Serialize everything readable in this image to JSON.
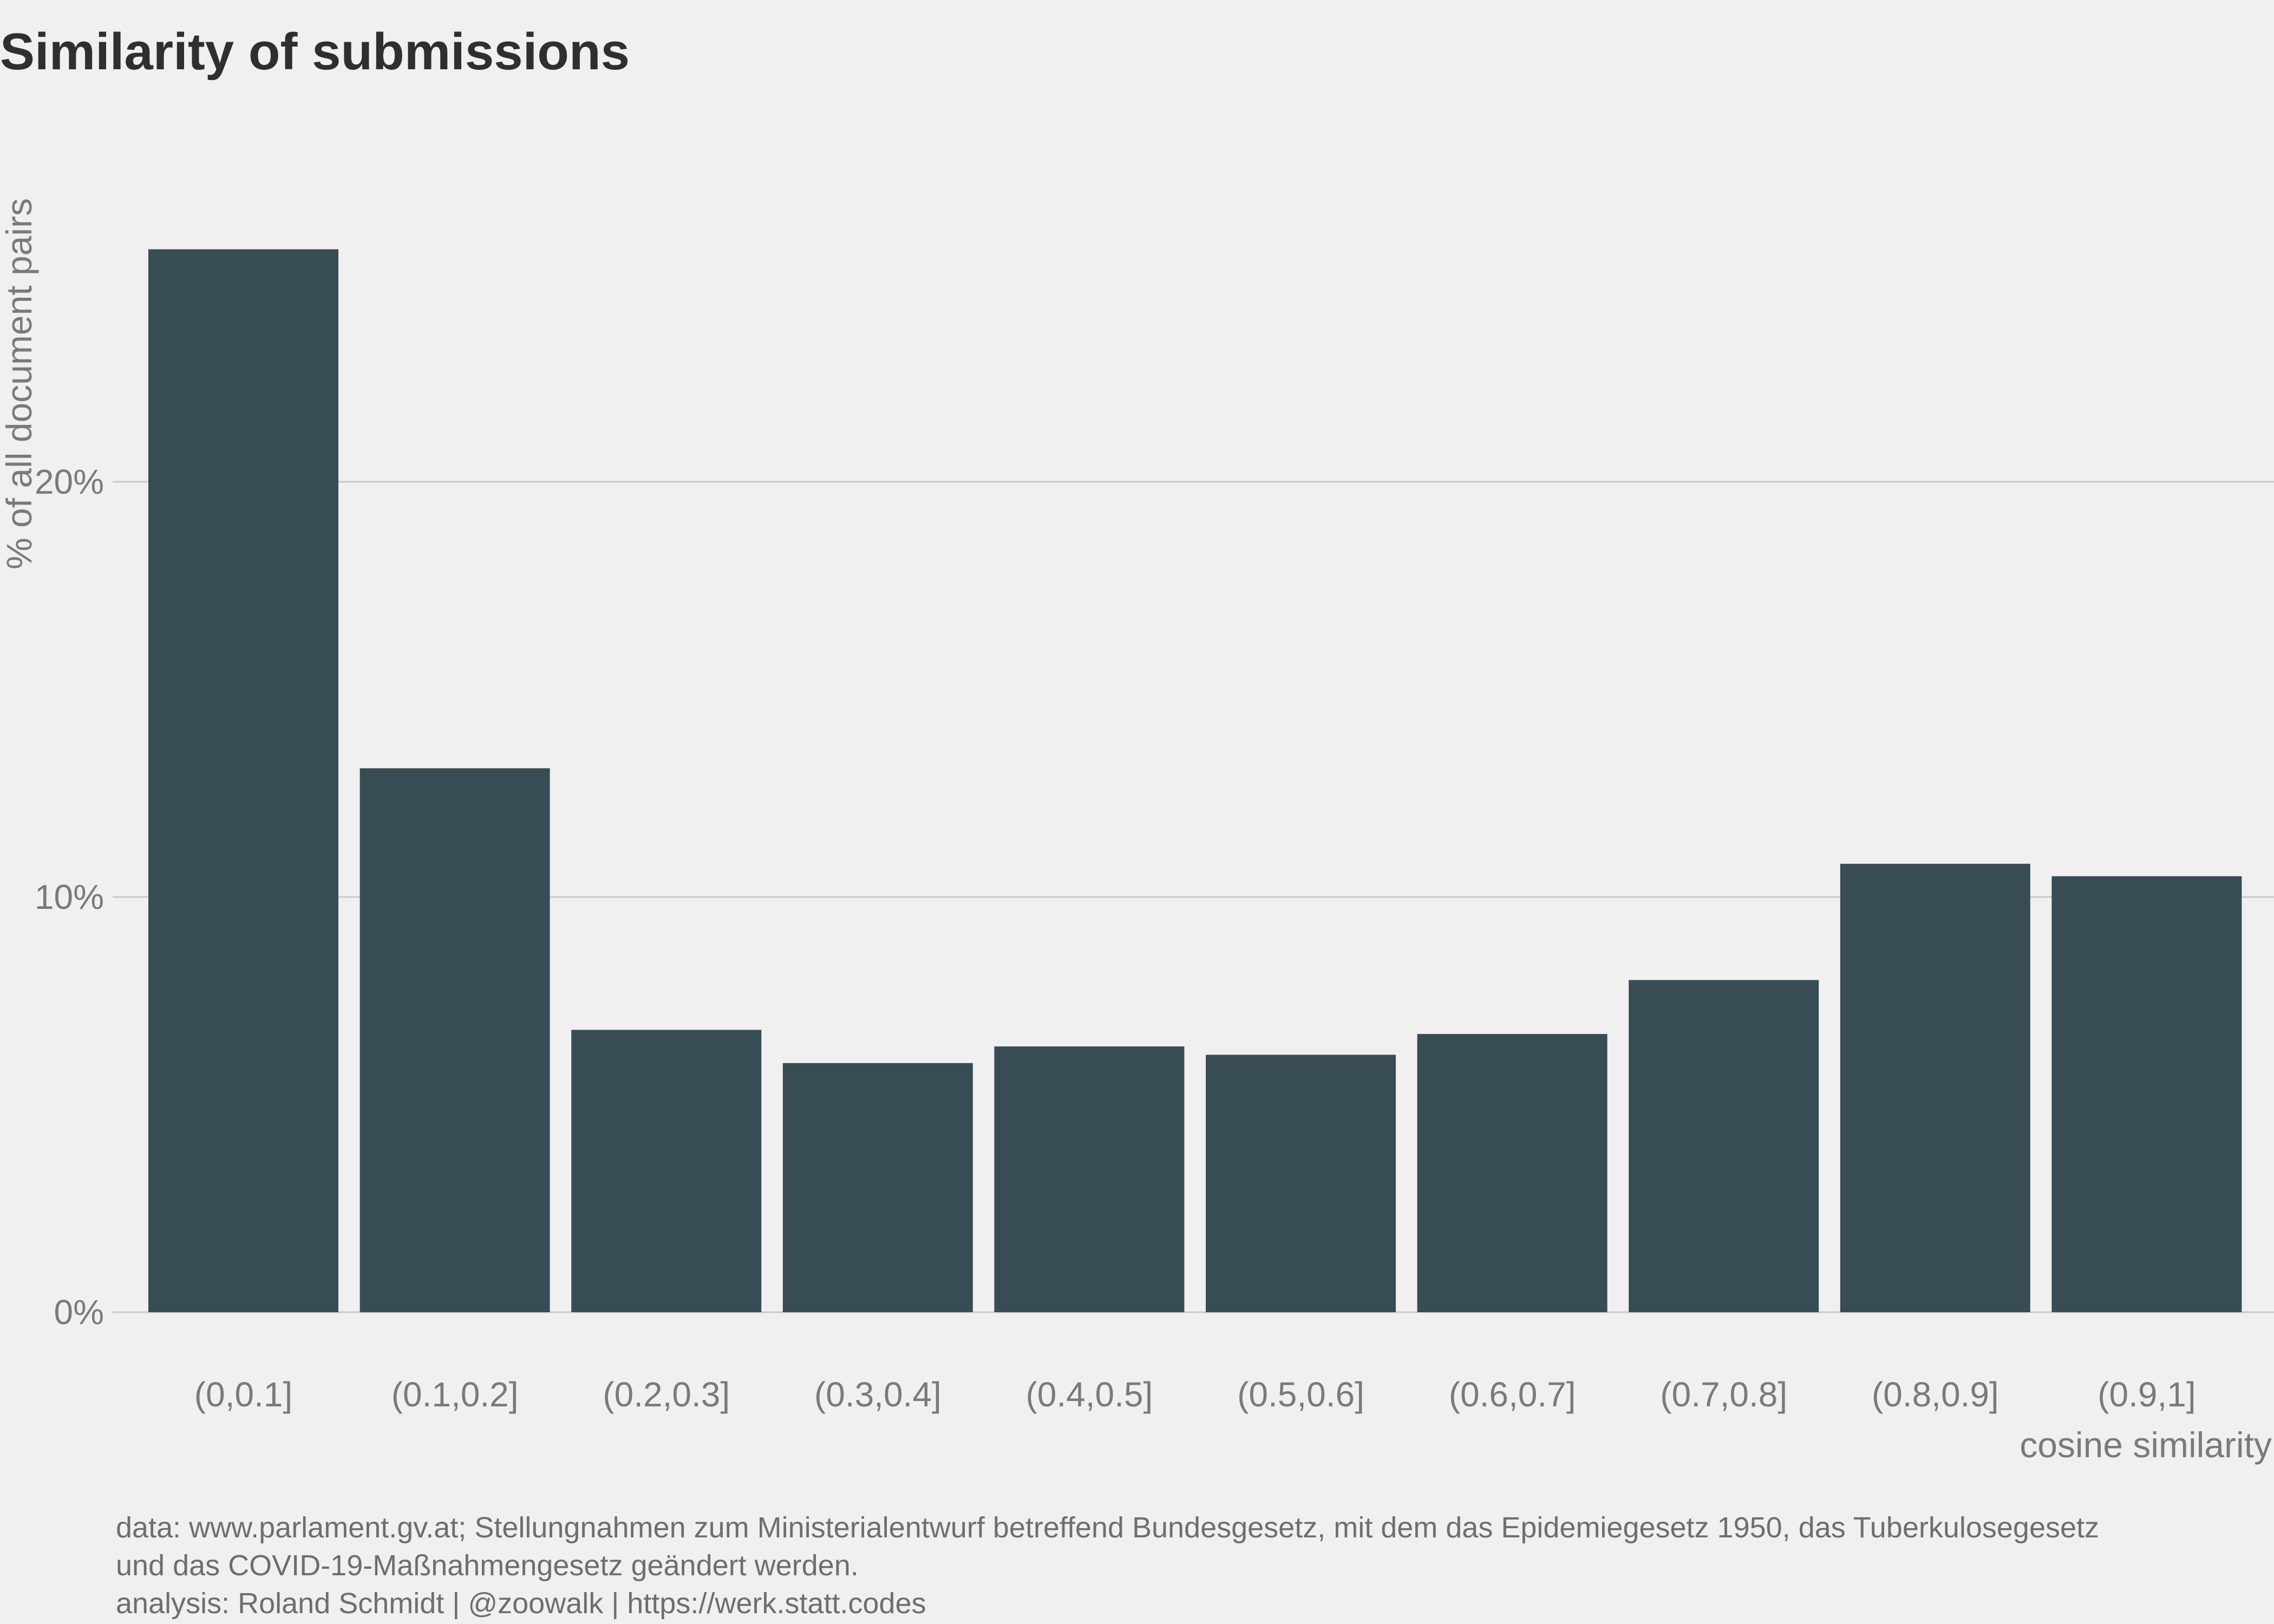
{
  "chart_data": {
    "type": "bar",
    "title": "Similarity of submissions",
    "xlabel": "cosine similarity",
    "ylabel": "% of all document pairs",
    "categories": [
      "(0,0.1]",
      "(0.1,0.2]",
      "(0.2,0.3]",
      "(0.3,0.4]",
      "(0.4,0.5]",
      "(0.5,0.6]",
      "(0.6,0.7]",
      "(0.7,0.8]",
      "(0.8,0.9]",
      "(0.9,1]"
    ],
    "values": [
      25.6,
      13.1,
      6.8,
      6.0,
      6.4,
      6.2,
      6.7,
      8.0,
      10.8,
      10.5
    ],
    "ylim": [
      0,
      27
    ],
    "yticks": [
      0,
      10,
      20
    ],
    "ytick_labels": [
      "0%",
      "10%",
      "20%"
    ],
    "grid": "horizontal",
    "bar_color": "#374c54",
    "background": "#f0f0f0"
  },
  "caption": {
    "lines": [
      "data: www.parlament.gv.at; Stellungnahmen zum Ministerialentwurf betreffend Bundesgesetz, mit dem das Epidemiegesetz 1950, das Tuberkulosegesetz",
      "und das COVID-19-Maßnahmengesetz geändert werden.",
      "analysis: Roland Schmidt | @zoowalk | https://werk.statt.codes"
    ]
  }
}
